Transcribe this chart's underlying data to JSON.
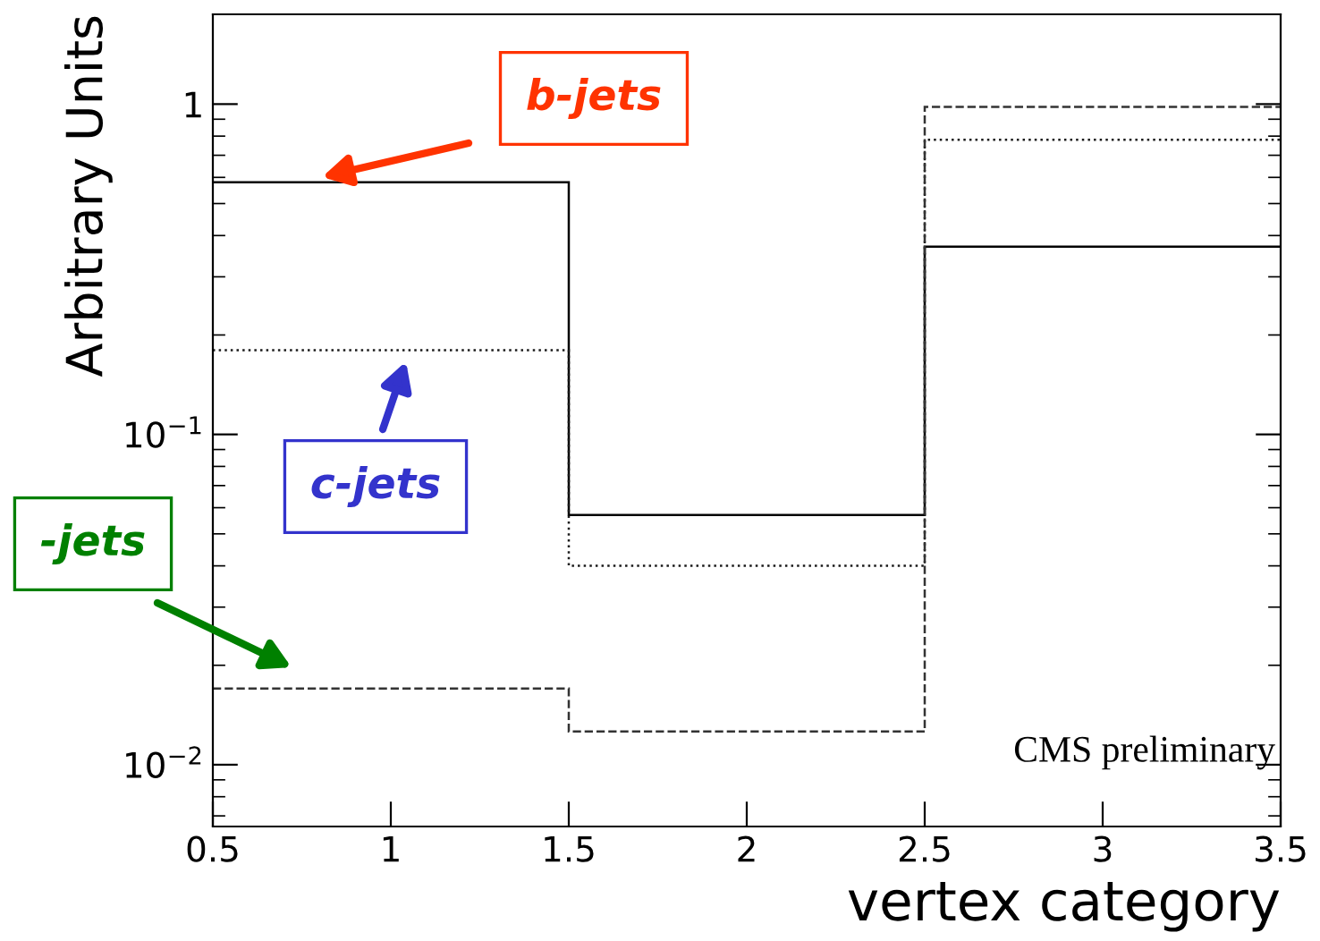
{
  "chart_data": {
    "type": "histogram",
    "ylabel": "Arbitrary Units",
    "xlabel": "vertex category",
    "bins": [
      0.5,
      1.5,
      2.5,
      3.5
    ],
    "series": [
      {
        "color": "#000000",
        "line_style": "solid",
        "values": [
          0.58,
          0.057,
          0.37
        ]
      },
      {
        "color": "#1a1a1a",
        "line_style": "dotted",
        "values": [
          0.18,
          0.04,
          0.78
        ]
      },
      {
        "color": "#333333",
        "line_style": "dashed",
        "values": [
          0.017,
          0.0126,
          0.98
        ]
      }
    ],
    "log": "y",
    "xlim": [
      0.5,
      3.5
    ],
    "ylim": [
      0.0065,
      1.87
    ],
    "xticks": [
      {
        "value": 0.5,
        "label": "0.5"
      },
      1,
      {
        "value": 1.5,
        "label": "1.5"
      },
      2,
      {
        "value": 2.5,
        "label": "2.5"
      },
      3,
      {
        "value": 3.5,
        "label": "3.5"
      }
    ],
    "yticks": [
      {
        "value": 0.01,
        "label": "10$^{−2}$"
      },
      {
        "value": 0.1,
        "label": "10$^{−1}$"
      },
      1
    ],
    "grid": false,
    "annotations": [
      "b-jets",
      "c-jets",
      "-jets",
      "CMS preliminary"
    ]
  }
}
